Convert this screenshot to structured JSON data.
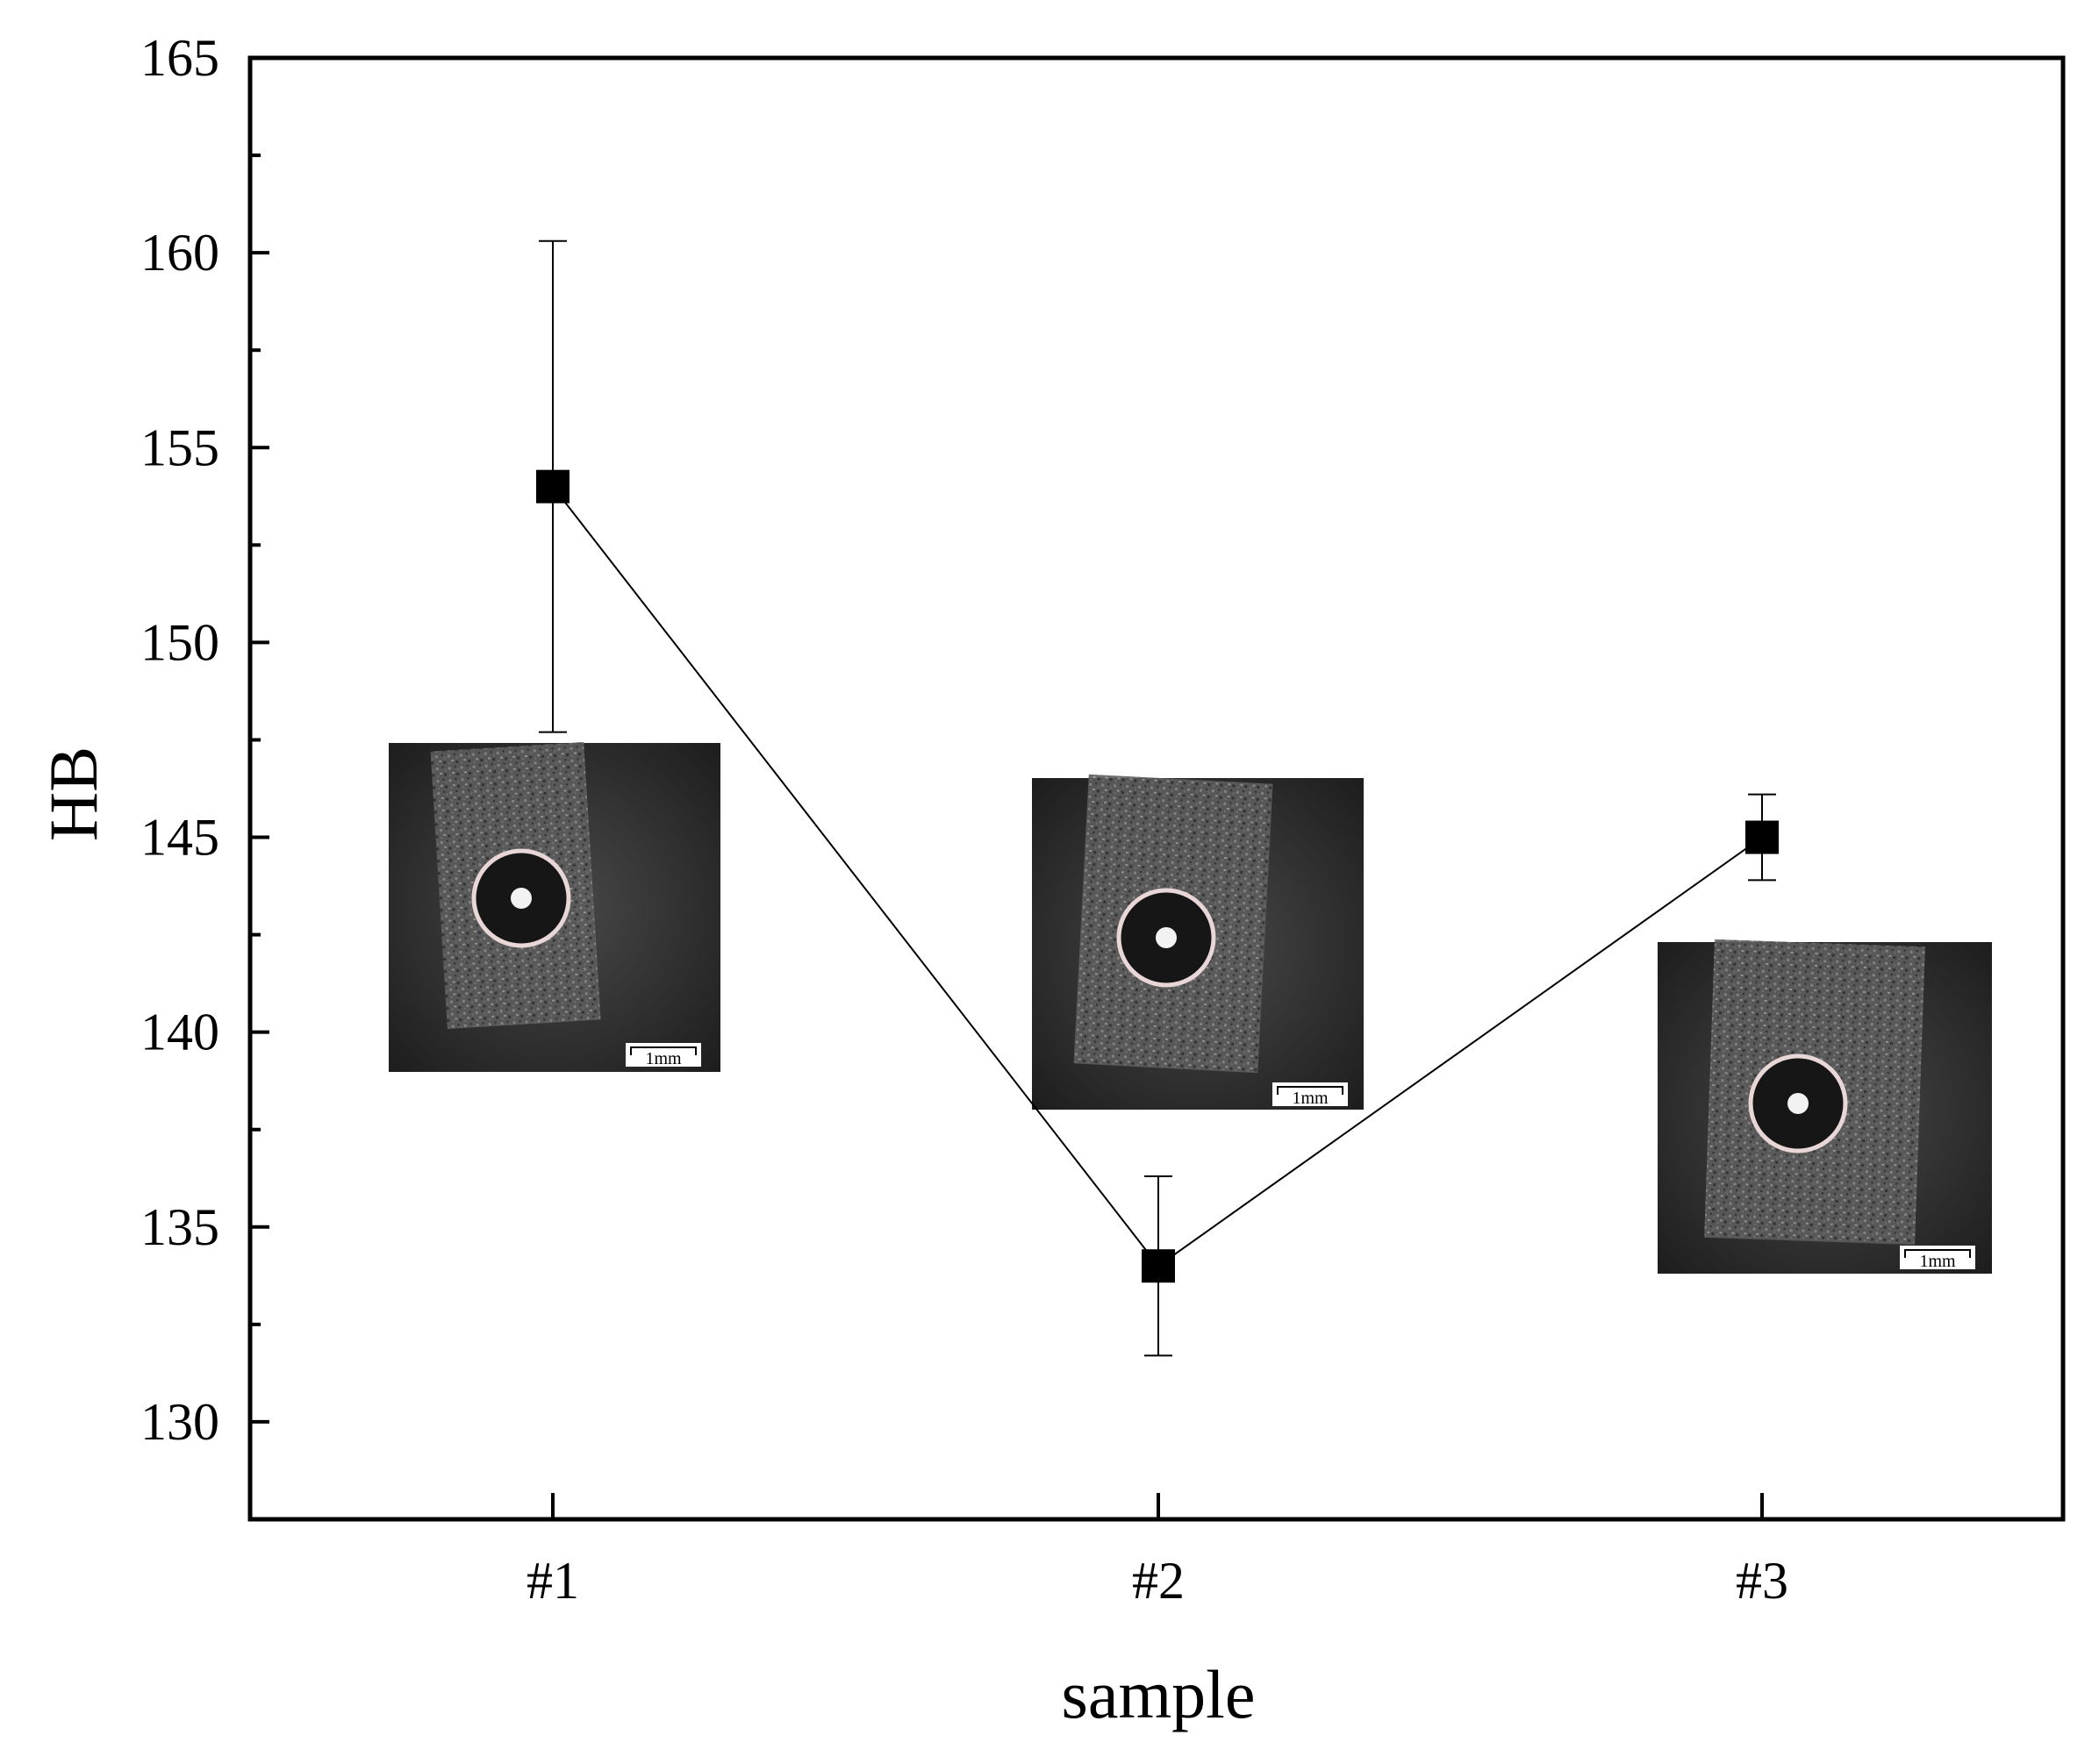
{
  "chart_data": {
    "type": "scatter",
    "xlabel": "sample",
    "ylabel": "HB",
    "categories": [
      "#1",
      "#2",
      "#3"
    ],
    "series": [
      {
        "values": [
          154,
          134,
          145
        ],
        "error_low": [
          147.7,
          131.7,
          143.9
        ],
        "error_high": [
          160.3,
          136.3,
          146.1
        ],
        "marker": "square",
        "color": "#000000",
        "connected": true
      }
    ],
    "ylim": [
      127.5,
      165
    ],
    "yticks": [
      "130",
      "135",
      "140",
      "145",
      "150",
      "155",
      "160",
      "165"
    ],
    "grid": false,
    "inset_images": [
      {
        "category": "#1",
        "description": "indentation micrograph",
        "scale_bar": "1mm"
      },
      {
        "category": "#2",
        "description": "indentation micrograph",
        "scale_bar": "1mm"
      },
      {
        "category": "#3",
        "description": "indentation micrograph",
        "scale_bar": "1mm"
      }
    ]
  }
}
